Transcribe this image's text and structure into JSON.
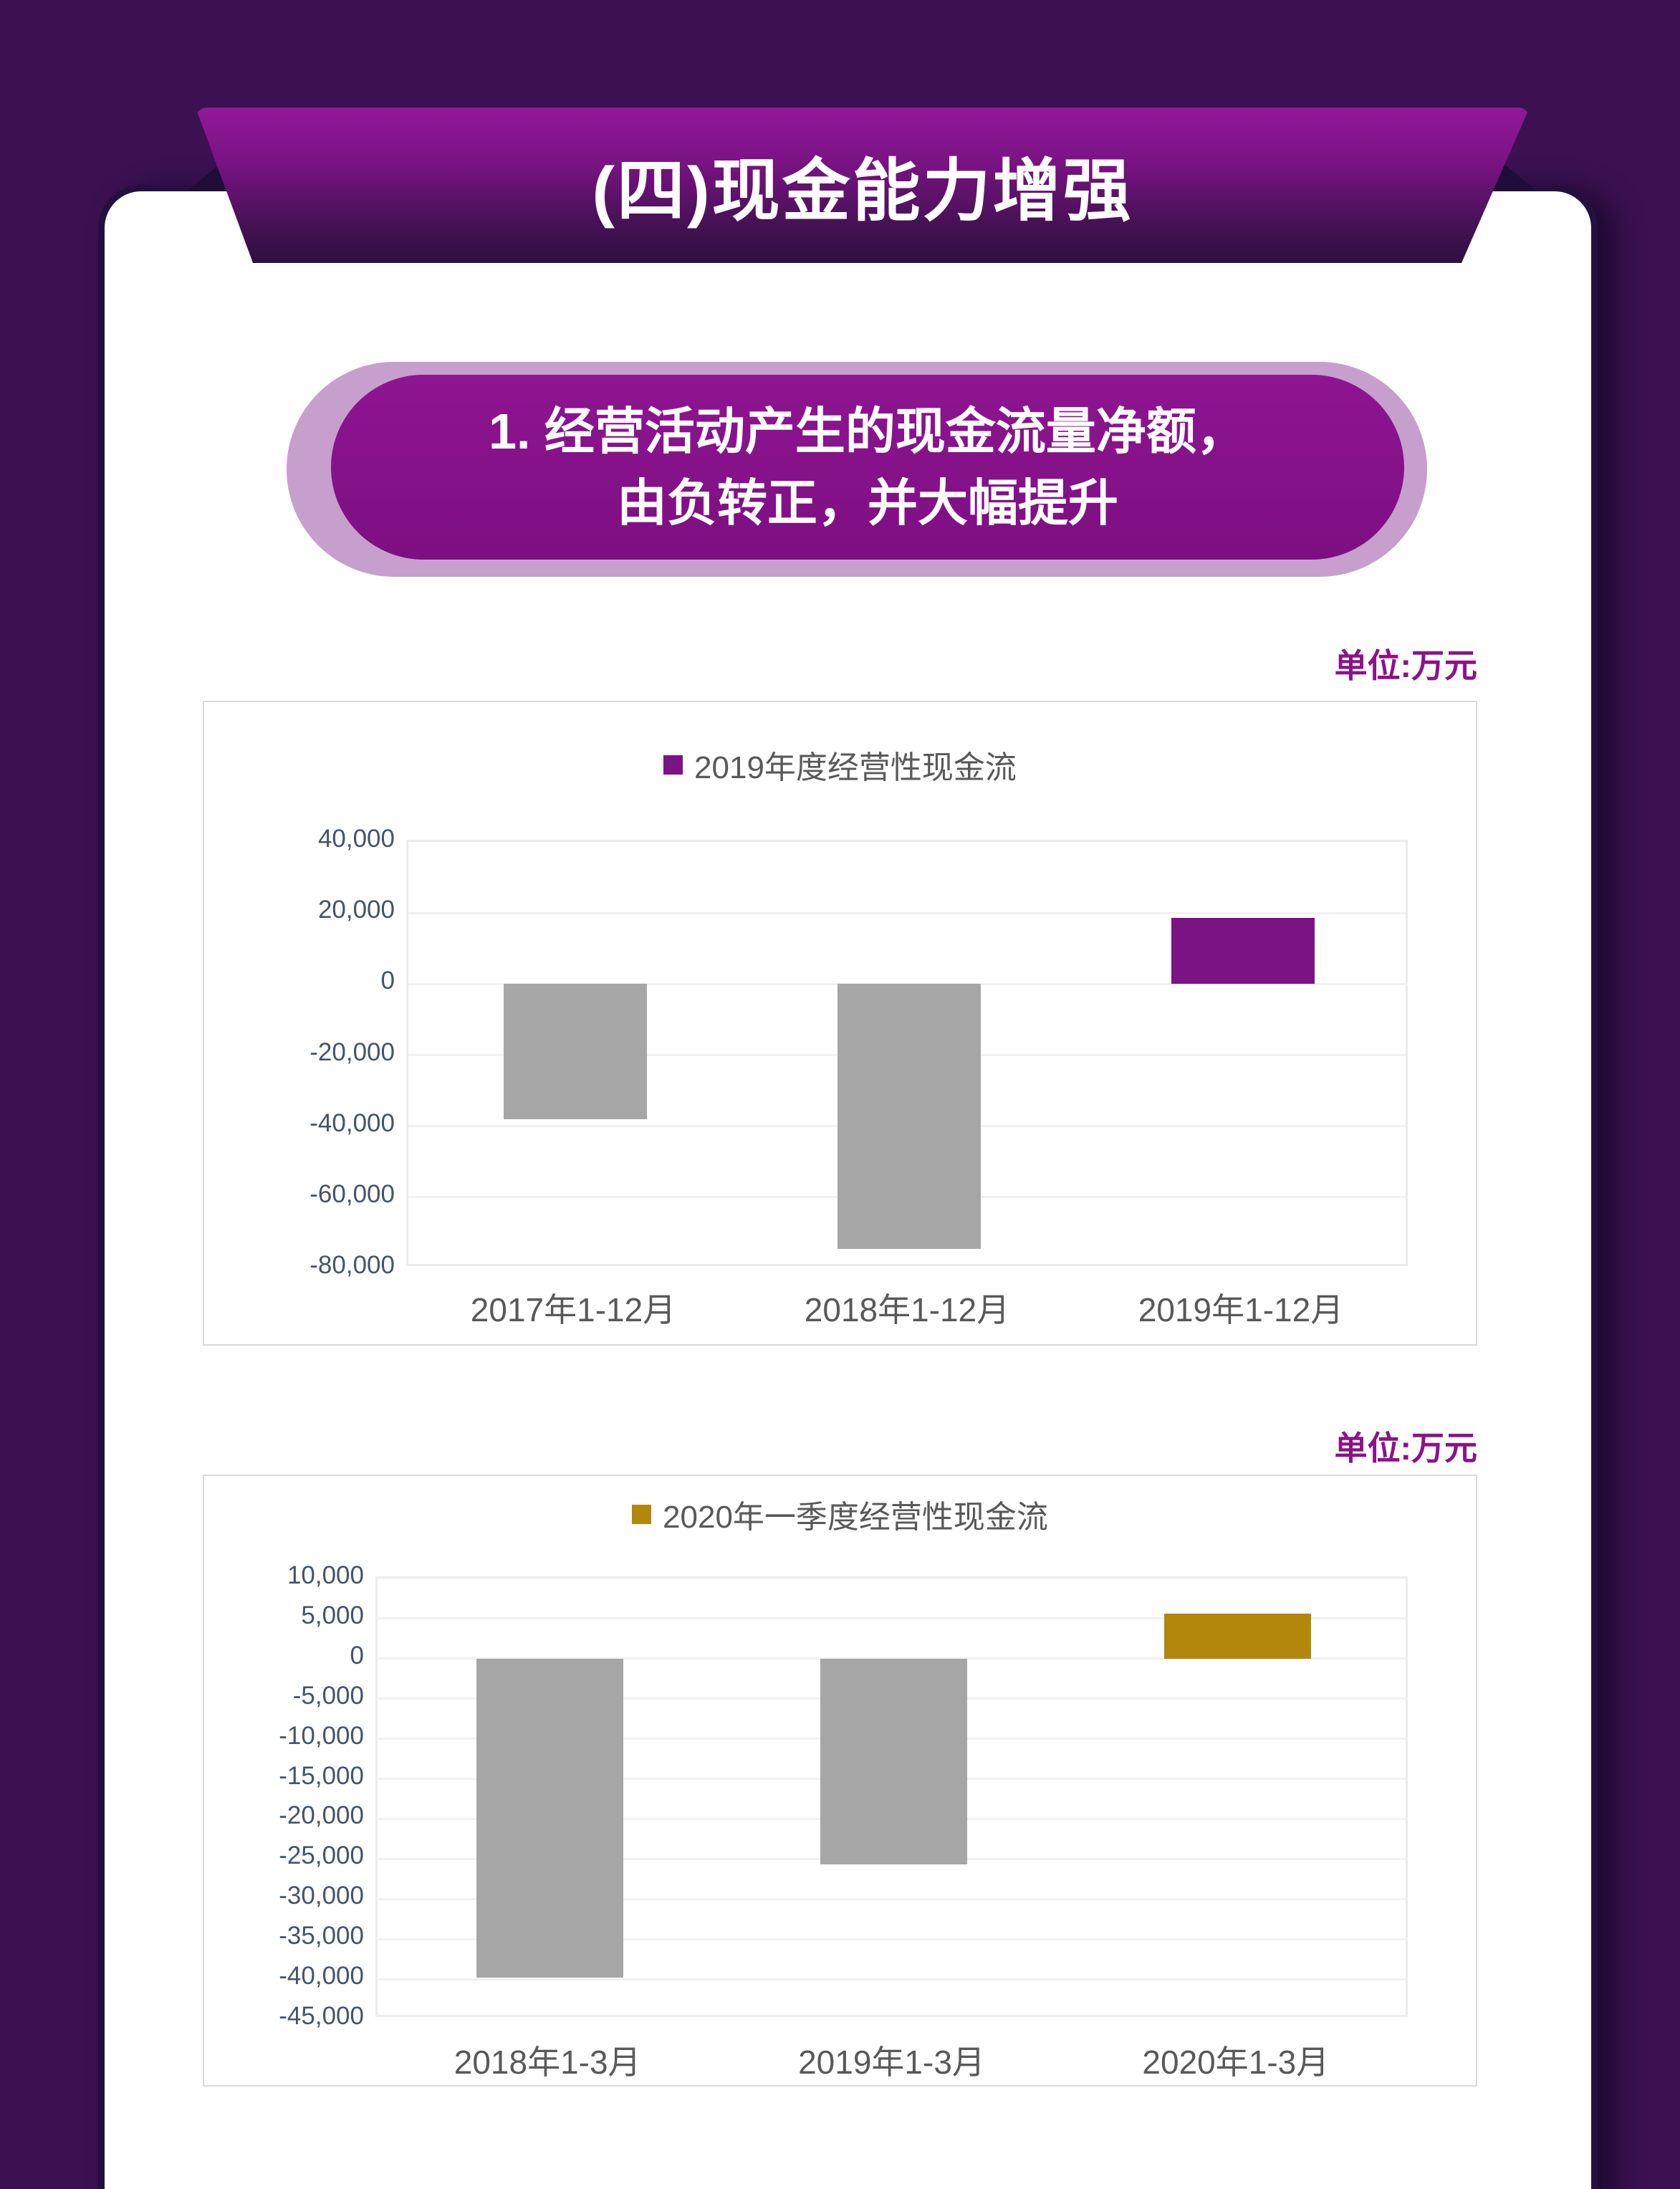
{
  "banner": {
    "title": "(四)现金能力增强"
  },
  "pill": {
    "line1": "1. 经营活动产生的现金流量净额，",
    "line2": "由负转正，并大幅提升"
  },
  "colors": {
    "page_background": "#3B1152",
    "banner_top": "#92189A",
    "banner_bottom": "#2D1040",
    "pill_outer": "#C79FCC",
    "pill_inner": "#8E1591",
    "unit_label_text": "#8B1389",
    "axis_tick_text": "#44546A",
    "axis_category_text": "#595959",
    "gridline": "#F1F1F1",
    "gray_bar": "#A6A6A6",
    "purple_bar": "#7B1384",
    "gold_bar": "#B2880C"
  },
  "chart_data": [
    {
      "type": "bar",
      "unit": "单位:万元",
      "legend": "2019年度经营性现金流",
      "legend_color": "#7B1384",
      "legend_position": "top",
      "categories": [
        "2017年1-12月",
        "2018年1-12月",
        "2019年1-12月"
      ],
      "values": [
        -38000,
        -74500,
        18600
      ],
      "bar_colors": [
        "#A6A6A6",
        "#A6A6A6",
        "#7B1384"
      ],
      "ylim": [
        -80000,
        40000
      ],
      "ytick_step": 20000,
      "grid": true,
      "xlabel": "",
      "ylabel": ""
    },
    {
      "type": "bar",
      "unit": "单位:万元",
      "legend": "2020年一季度经营性现金流",
      "legend_color": "#B2880C",
      "legend_position": "top",
      "categories": [
        "2018年1-3月",
        "2019年1-3月",
        "2020年1-3月"
      ],
      "values": [
        -39800,
        -25700,
        5600
      ],
      "bar_colors": [
        "#A6A6A6",
        "#A6A6A6",
        "#B2880C"
      ],
      "ylim": [
        -45000,
        10000
      ],
      "ytick_step": 5000,
      "grid": true,
      "xlabel": "",
      "ylabel": ""
    }
  ]
}
